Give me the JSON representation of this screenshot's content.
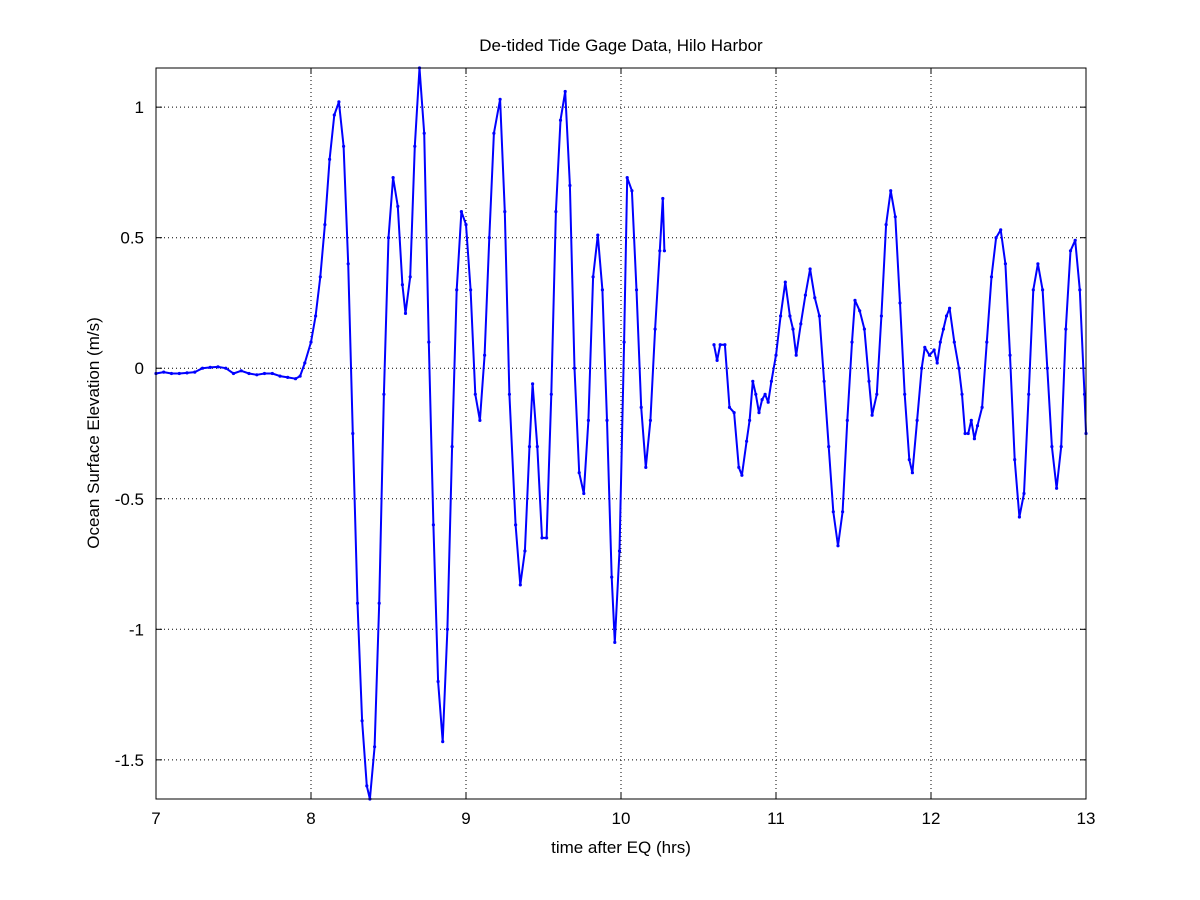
{
  "chart_data": {
    "type": "line",
    "title": "De-tided Tide Gage Data, Hilo Harbor",
    "xlabel": "time after EQ (hrs)",
    "ylabel": "Ocean Surface Elevation (m/s)",
    "xlim": [
      7,
      13
    ],
    "ylim": [
      -1.65,
      1.15
    ],
    "x_ticks": [
      7,
      8,
      9,
      10,
      11,
      12,
      13
    ],
    "x_tick_labels": [
      "7",
      "8",
      "9",
      "10",
      "11",
      "12",
      "13"
    ],
    "y_ticks": [
      1,
      0.5,
      0,
      -0.5,
      -1,
      -1.5
    ],
    "y_tick_labels": [
      "1",
      "0.5",
      "0",
      "-0.5",
      "-1",
      "-1.5"
    ],
    "grid": true,
    "grid_style": "dotted",
    "marker": "point",
    "series_color": "#0000ff",
    "series": [
      {
        "segments": [
          [
            [
              7.0,
              -0.02
            ],
            [
              7.05,
              -0.015
            ],
            [
              7.1,
              -0.02
            ],
            [
              7.15,
              -0.02
            ],
            [
              7.2,
              -0.018
            ],
            [
              7.25,
              -0.015
            ],
            [
              7.3,
              0.0
            ],
            [
              7.35,
              0.003
            ],
            [
              7.4,
              0.005
            ],
            [
              7.45,
              0.0
            ],
            [
              7.5,
              -0.02
            ],
            [
              7.55,
              -0.01
            ],
            [
              7.6,
              -0.02
            ],
            [
              7.65,
              -0.025
            ],
            [
              7.7,
              -0.02
            ],
            [
              7.75,
              -0.02
            ],
            [
              7.8,
              -0.03
            ],
            [
              7.85,
              -0.035
            ],
            [
              7.9,
              -0.04
            ],
            [
              7.93,
              -0.03
            ],
            [
              7.96,
              0.02
            ],
            [
              8.0,
              0.1
            ],
            [
              8.03,
              0.2
            ],
            [
              8.06,
              0.35
            ],
            [
              8.09,
              0.55
            ],
            [
              8.12,
              0.8
            ],
            [
              8.15,
              0.97
            ],
            [
              8.18,
              1.02
            ],
            [
              8.21,
              0.85
            ],
            [
              8.24,
              0.4
            ],
            [
              8.27,
              -0.25
            ],
            [
              8.3,
              -0.9
            ],
            [
              8.33,
              -1.35
            ],
            [
              8.36,
              -1.6
            ],
            [
              8.38,
              -1.65
            ],
            [
              8.41,
              -1.45
            ],
            [
              8.44,
              -0.9
            ],
            [
              8.47,
              -0.1
            ],
            [
              8.5,
              0.5
            ],
            [
              8.53,
              0.73
            ],
            [
              8.56,
              0.62
            ],
            [
              8.59,
              0.32
            ],
            [
              8.61,
              0.21
            ],
            [
              8.64,
              0.35
            ],
            [
              8.67,
              0.85
            ],
            [
              8.7,
              1.15
            ],
            [
              8.73,
              0.9
            ],
            [
              8.76,
              0.1
            ],
            [
              8.79,
              -0.6
            ],
            [
              8.82,
              -1.2
            ],
            [
              8.85,
              -1.43
            ],
            [
              8.88,
              -1.0
            ],
            [
              8.91,
              -0.3
            ],
            [
              8.94,
              0.3
            ],
            [
              8.97,
              0.6
            ],
            [
              9.0,
              0.55
            ],
            [
              9.03,
              0.3
            ],
            [
              9.06,
              -0.1
            ],
            [
              9.09,
              -0.2
            ],
            [
              9.12,
              0.05
            ],
            [
              9.15,
              0.5
            ],
            [
              9.18,
              0.9
            ],
            [
              9.22,
              1.03
            ],
            [
              9.25,
              0.6
            ],
            [
              9.28,
              -0.1
            ],
            [
              9.32,
              -0.6
            ],
            [
              9.35,
              -0.83
            ],
            [
              9.38,
              -0.7
            ],
            [
              9.41,
              -0.3
            ],
            [
              9.43,
              -0.06
            ],
            [
              9.46,
              -0.3
            ],
            [
              9.49,
              -0.65
            ],
            [
              9.52,
              -0.65
            ],
            [
              9.55,
              -0.1
            ],
            [
              9.58,
              0.6
            ],
            [
              9.61,
              0.95
            ],
            [
              9.64,
              1.06
            ],
            [
              9.67,
              0.7
            ],
            [
              9.7,
              0.0
            ],
            [
              9.73,
              -0.4
            ],
            [
              9.76,
              -0.48
            ],
            [
              9.79,
              -0.2
            ],
            [
              9.82,
              0.35
            ],
            [
              9.85,
              0.51
            ],
            [
              9.88,
              0.3
            ],
            [
              9.91,
              -0.2
            ],
            [
              9.94,
              -0.8
            ],
            [
              9.96,
              -1.05
            ],
            [
              9.99,
              -0.7
            ],
            [
              10.02,
              0.1
            ],
            [
              10.04,
              0.73
            ],
            [
              10.07,
              0.68
            ],
            [
              10.1,
              0.3
            ],
            [
              10.13,
              -0.15
            ],
            [
              10.16,
              -0.38
            ],
            [
              10.19,
              -0.2
            ],
            [
              10.22,
              0.15
            ],
            [
              10.25,
              0.45
            ],
            [
              10.27,
              0.65
            ],
            [
              10.28,
              0.45
            ]
          ],
          [
            [
              10.6,
              0.09
            ],
            [
              10.62,
              0.03
            ],
            [
              10.64,
              0.09
            ],
            [
              10.67,
              0.09
            ],
            [
              10.7,
              -0.15
            ],
            [
              10.73,
              -0.17
            ],
            [
              10.76,
              -0.38
            ],
            [
              10.78,
              -0.41
            ],
            [
              10.81,
              -0.28
            ],
            [
              10.83,
              -0.2
            ],
            [
              10.85,
              -0.05
            ],
            [
              10.87,
              -0.1
            ],
            [
              10.89,
              -0.17
            ],
            [
              10.91,
              -0.12
            ],
            [
              10.93,
              -0.1
            ],
            [
              10.95,
              -0.13
            ],
            [
              10.97,
              -0.05
            ],
            [
              11.0,
              0.05
            ],
            [
              11.03,
              0.2
            ],
            [
              11.06,
              0.33
            ],
            [
              11.09,
              0.2
            ],
            [
              11.11,
              0.15
            ],
            [
              11.13,
              0.05
            ],
            [
              11.16,
              0.17
            ],
            [
              11.19,
              0.28
            ],
            [
              11.22,
              0.38
            ],
            [
              11.25,
              0.27
            ],
            [
              11.28,
              0.2
            ],
            [
              11.31,
              -0.05
            ],
            [
              11.34,
              -0.3
            ],
            [
              11.37,
              -0.55
            ],
            [
              11.4,
              -0.68
            ],
            [
              11.43,
              -0.55
            ],
            [
              11.46,
              -0.2
            ],
            [
              11.49,
              0.1
            ],
            [
              11.51,
              0.26
            ],
            [
              11.54,
              0.22
            ],
            [
              11.57,
              0.15
            ],
            [
              11.6,
              -0.05
            ],
            [
              11.62,
              -0.18
            ],
            [
              11.65,
              -0.1
            ],
            [
              11.68,
              0.2
            ],
            [
              11.71,
              0.55
            ],
            [
              11.74,
              0.68
            ],
            [
              11.77,
              0.58
            ],
            [
              11.8,
              0.25
            ],
            [
              11.83,
              -0.1
            ],
            [
              11.86,
              -0.35
            ],
            [
              11.88,
              -0.4
            ],
            [
              11.91,
              -0.2
            ],
            [
              11.94,
              0.0
            ],
            [
              11.96,
              0.08
            ],
            [
              11.99,
              0.05
            ],
            [
              12.02,
              0.07
            ],
            [
              12.04,
              0.02
            ],
            [
              12.06,
              0.1
            ],
            [
              12.08,
              0.15
            ],
            [
              12.1,
              0.2
            ],
            [
              12.12,
              0.23
            ],
            [
              12.15,
              0.1
            ],
            [
              12.18,
              0.0
            ],
            [
              12.2,
              -0.1
            ],
            [
              12.22,
              -0.25
            ],
            [
              12.24,
              -0.25
            ],
            [
              12.26,
              -0.2
            ],
            [
              12.28,
              -0.27
            ],
            [
              12.3,
              -0.22
            ],
            [
              12.33,
              -0.15
            ],
            [
              12.36,
              0.1
            ],
            [
              12.39,
              0.35
            ],
            [
              12.42,
              0.5
            ],
            [
              12.45,
              0.53
            ],
            [
              12.48,
              0.4
            ],
            [
              12.51,
              0.05
            ],
            [
              12.54,
              -0.35
            ],
            [
              12.57,
              -0.57
            ],
            [
              12.6,
              -0.48
            ],
            [
              12.63,
              -0.1
            ],
            [
              12.66,
              0.3
            ],
            [
              12.69,
              0.4
            ],
            [
              12.72,
              0.3
            ],
            [
              12.75,
              0.0
            ],
            [
              12.78,
              -0.3
            ],
            [
              12.81,
              -0.46
            ],
            [
              12.84,
              -0.3
            ],
            [
              12.87,
              0.15
            ],
            [
              12.9,
              0.45
            ],
            [
              12.93,
              0.49
            ],
            [
              12.96,
              0.3
            ],
            [
              12.99,
              -0.1
            ],
            [
              13.0,
              -0.25
            ]
          ]
        ]
      }
    ]
  }
}
